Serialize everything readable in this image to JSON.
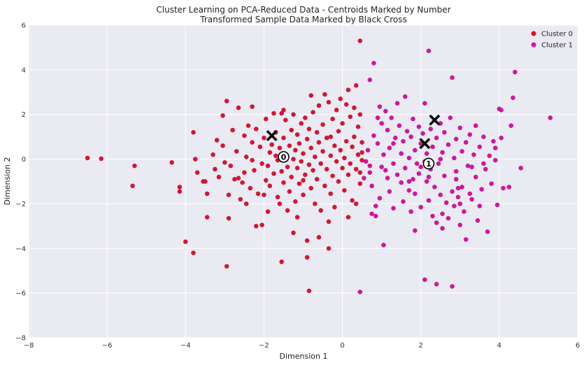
{
  "chart_data": {
    "type": "scatter",
    "title_line1": "Cluster Learning on PCA-Reduced Data - Centroids Marked by Number",
    "title_line2": "Transformed Sample Data Marked by Black Cross",
    "xlabel": "Dimension 1",
    "ylabel": "Dimension 2",
    "xlim": [
      -8,
      6
    ],
    "ylim": [
      -8,
      6
    ],
    "x_ticks": [
      -8,
      -6,
      -4,
      -2,
      0,
      2,
      4,
      6
    ],
    "y_ticks": [
      -8,
      -6,
      -4,
      -2,
      0,
      2,
      4,
      6
    ],
    "grid": true,
    "legend_position": "top-right",
    "series": [
      {
        "name": "Cluster 0",
        "color": "#dc1230",
        "points": [
          [
            -6.5,
            0.05
          ],
          [
            -6.15,
            0.02
          ],
          [
            -5.3,
            -0.3
          ],
          [
            -5.35,
            -1.2
          ],
          [
            -4.35,
            -0.15
          ],
          [
            -4.15,
            -1.25
          ],
          [
            -4.15,
            -1.45
          ],
          [
            -4.0,
            -3.7
          ],
          [
            -3.8,
            -4.2
          ],
          [
            -3.8,
            1.2
          ],
          [
            -3.75,
            0.0
          ],
          [
            -3.7,
            -0.6
          ],
          [
            -3.55,
            -1.0
          ],
          [
            -3.45,
            -1.55
          ],
          [
            -3.45,
            -2.6
          ],
          [
            -3.3,
            0.2
          ],
          [
            -3.25,
            -0.45
          ],
          [
            -3.2,
            0.85
          ],
          [
            -3.15,
            -0.8
          ],
          [
            -3.05,
            1.95
          ],
          [
            -3.05,
            0.6
          ],
          [
            -3.0,
            -0.15
          ],
          [
            -2.95,
            2.6
          ],
          [
            -2.95,
            -4.8
          ],
          [
            -2.9,
            -1.6
          ],
          [
            -2.9,
            -2.65
          ],
          [
            -2.85,
            -0.3
          ],
          [
            -2.8,
            1.3
          ],
          [
            -2.75,
            -0.9
          ],
          [
            -2.7,
            0.35
          ],
          [
            -2.65,
            2.3
          ],
          [
            -2.6,
            -1.8
          ],
          [
            -2.55,
            -1.05
          ],
          [
            -2.5,
            -0.6
          ],
          [
            -2.5,
            1.05
          ],
          [
            -2.45,
            0.1
          ],
          [
            -2.45,
            -2.0
          ],
          [
            -2.4,
            1.5
          ],
          [
            -2.35,
            -1.3
          ],
          [
            -2.3,
            -0.05
          ],
          [
            -2.3,
            0.75
          ],
          [
            -2.25,
            -0.5
          ],
          [
            -2.2,
            1.35
          ],
          [
            -2.2,
            -3.0
          ],
          [
            -2.15,
            -1.55
          ],
          [
            -2.1,
            0.55
          ],
          [
            -2.05,
            -0.2
          ],
          [
            -2.05,
            -2.95
          ],
          [
            -2.0,
            0.95
          ],
          [
            -1.95,
            -0.95
          ],
          [
            -1.95,
            1.8
          ],
          [
            -1.9,
            -0.3
          ],
          [
            -1.85,
            0.3
          ],
          [
            -1.85,
            -1.2
          ],
          [
            -1.8,
            0.65
          ],
          [
            -1.75,
            2.05
          ],
          [
            -1.75,
            -0.65
          ],
          [
            -1.7,
            0.15
          ],
          [
            -1.7,
            1.2
          ],
          [
            -1.65,
            -1.7
          ],
          [
            -1.65,
            -0.05
          ],
          [
            -1.6,
            0.5
          ],
          [
            -1.6,
            -2.0
          ],
          [
            -1.55,
            2.05
          ],
          [
            -1.55,
            -0.55
          ],
          [
            -1.55,
            -4.6
          ],
          [
            -1.5,
            0.95
          ],
          [
            -1.5,
            -1.05
          ],
          [
            -1.45,
            0.2
          ],
          [
            -1.45,
            1.75
          ],
          [
            -1.4,
            -0.35
          ],
          [
            -1.4,
            -2.3
          ],
          [
            -1.35,
            0.6
          ],
          [
            -1.35,
            -1.45
          ],
          [
            -1.3,
            1.3
          ],
          [
            -1.3,
            -0.8
          ],
          [
            -1.25,
            0.0
          ],
          [
            -1.25,
            2.0
          ],
          [
            -1.2,
            0.4
          ],
          [
            -1.2,
            -1.9
          ],
          [
            -1.15,
            1.1
          ],
          [
            -1.15,
            -0.4
          ],
          [
            -1.1,
            0.7
          ],
          [
            -1.1,
            -1.1
          ],
          [
            -1.05,
            1.6
          ],
          [
            -1.05,
            -0.1
          ],
          [
            -1.0,
            0.25
          ],
          [
            -1.0,
            -1.6
          ],
          [
            -0.95,
            1.85
          ],
          [
            -0.95,
            -0.7
          ],
          [
            -0.9,
            0.9
          ],
          [
            -0.9,
            -3.65
          ],
          [
            -0.85,
            -0.25
          ],
          [
            -0.85,
            1.35
          ],
          [
            -0.8,
            0.5
          ],
          [
            -0.8,
            -1.3
          ],
          [
            -0.75,
            2.1
          ],
          [
            -0.75,
            -0.5
          ],
          [
            -0.7,
            0.1
          ],
          [
            -0.7,
            -2.0
          ],
          [
            -0.65,
            1.2
          ],
          [
            -0.65,
            -0.9
          ],
          [
            -0.6,
            2.4
          ],
          [
            -0.6,
            0.75
          ],
          [
            -0.55,
            -0.2
          ],
          [
            -0.55,
            -2.3
          ],
          [
            -0.5,
            1.55
          ],
          [
            -0.5,
            0.35
          ],
          [
            -0.45,
            -1.2
          ],
          [
            -0.45,
            2.9
          ],
          [
            -0.4,
            -0.45
          ],
          [
            -0.4,
            0.95
          ],
          [
            -0.35,
            2.55
          ],
          [
            -0.35,
            -4.0
          ],
          [
            -0.3,
            0.15
          ],
          [
            -0.3,
            -1.55
          ],
          [
            -0.25,
            1.8
          ],
          [
            -0.25,
            -0.75
          ],
          [
            -0.2,
            0.6
          ],
          [
            -0.2,
            -2.15
          ],
          [
            -0.15,
            2.2
          ],
          [
            -0.15,
            -0.1
          ],
          [
            -0.1,
            1.25
          ],
          [
            -0.1,
            -1.0
          ],
          [
            -0.05,
            0.4
          ],
          [
            -0.05,
            2.7
          ],
          [
            0.0,
            -0.4
          ],
          [
            0.0,
            1.6
          ],
          [
            0.05,
            0.05
          ],
          [
            0.05,
            -1.4
          ],
          [
            0.1,
            2.45
          ],
          [
            0.1,
            0.8
          ],
          [
            0.15,
            -0.7
          ],
          [
            0.15,
            3.1
          ],
          [
            0.2,
            1.9
          ],
          [
            0.2,
            -0.2
          ],
          [
            0.25,
            0.55
          ],
          [
            0.25,
            -1.85
          ],
          [
            0.3,
            2.3
          ],
          [
            0.3,
            1.0
          ],
          [
            0.35,
            -0.45
          ],
          [
            0.35,
            3.3
          ],
          [
            0.4,
            0.2
          ],
          [
            0.4,
            1.45
          ],
          [
            0.45,
            -1.1
          ],
          [
            0.45,
            2.0
          ],
          [
            0.5,
            0.75
          ],
          [
            0.5,
            -0.05
          ],
          [
            0.45,
            5.3
          ],
          [
            -0.35,
            -2.8
          ],
          [
            -1.15,
            -2.6
          ],
          [
            -0.9,
            -4.4
          ],
          [
            -0.85,
            -5.9
          ],
          [
            -1.5,
            2.2
          ],
          [
            -2.0,
            -1.6
          ],
          [
            -3.5,
            -1.0
          ],
          [
            -2.65,
            -0.85
          ],
          [
            -1.9,
            -2.35
          ],
          [
            -0.6,
            -3.5
          ],
          [
            0.15,
            -2.6
          ],
          [
            -0.8,
            2.85
          ],
          [
            -0.3,
            1.0
          ],
          [
            -1.0,
            -0.95
          ],
          [
            0.35,
            -2.0
          ],
          [
            0.5,
            0.3
          ],
          [
            0.45,
            -0.6
          ],
          [
            -1.25,
            -3.3
          ],
          [
            -2.3,
            2.35
          ]
        ]
      },
      {
        "name": "Cluster 1",
        "color": "#d5139f",
        "points": [
          [
            0.45,
            -5.95
          ],
          [
            0.55,
            -0.85
          ],
          [
            0.6,
            -0.1
          ],
          [
            0.65,
            0.4
          ],
          [
            0.7,
            -0.6
          ],
          [
            0.7,
            3.55
          ],
          [
            0.75,
            -1.2
          ],
          [
            0.8,
            4.3
          ],
          [
            0.8,
            1.05
          ],
          [
            0.85,
            -2.1
          ],
          [
            0.85,
            -2.55
          ],
          [
            0.9,
            0.7
          ],
          [
            0.95,
            2.35
          ],
          [
            0.95,
            -1.75
          ],
          [
            1.0,
            -0.35
          ],
          [
            1.0,
            1.6
          ],
          [
            1.05,
            -3.85
          ],
          [
            1.05,
            0.2
          ],
          [
            1.1,
            2.15
          ],
          [
            1.15,
            -0.85
          ],
          [
            1.15,
            1.3
          ],
          [
            1.2,
            -1.45
          ],
          [
            1.2,
            0.5
          ],
          [
            1.25,
            1.85
          ],
          [
            1.3,
            -0.2
          ],
          [
            1.3,
            -2.2
          ],
          [
            1.35,
            0.95
          ],
          [
            1.4,
            2.5
          ],
          [
            1.4,
            -0.7
          ],
          [
            1.45,
            1.5
          ],
          [
            1.5,
            -1.05
          ],
          [
            1.5,
            0.25
          ],
          [
            1.55,
            -1.9
          ],
          [
            1.55,
            0.8
          ],
          [
            1.6,
            -0.4
          ],
          [
            1.6,
            2.8
          ],
          [
            1.65,
            1.25
          ],
          [
            1.7,
            -1.4
          ],
          [
            1.7,
            0.05
          ],
          [
            1.75,
            -2.35
          ],
          [
            1.75,
            1.0
          ],
          [
            1.8,
            -0.9
          ],
          [
            1.8,
            1.8
          ],
          [
            1.85,
            0.4
          ],
          [
            1.85,
            -1.55
          ],
          [
            1.9,
            -0.2
          ],
          [
            1.95,
            1.45
          ],
          [
            1.95,
            -0.65
          ],
          [
            2.0,
            0.7
          ],
          [
            2.0,
            -2.15
          ],
          [
            2.05,
            1.15
          ],
          [
            2.1,
            -0.1
          ],
          [
            2.1,
            2.5
          ],
          [
            2.15,
            -1.0
          ],
          [
            2.15,
            0.25
          ],
          [
            2.2,
            -1.85
          ],
          [
            2.2,
            4.85
          ],
          [
            2.25,
            1.35
          ],
          [
            2.25,
            -0.45
          ],
          [
            2.3,
            0.55
          ],
          [
            2.3,
            -2.55
          ],
          [
            2.35,
            -1.25
          ],
          [
            2.4,
            0.95
          ],
          [
            2.4,
            -2.85
          ],
          [
            2.45,
            -0.2
          ],
          [
            2.5,
            1.6
          ],
          [
            2.5,
            -1.6
          ],
          [
            2.55,
            0.3
          ],
          [
            2.55,
            -2.45
          ],
          [
            2.6,
            1.2
          ],
          [
            2.6,
            -0.75
          ],
          [
            2.65,
            -1.95
          ],
          [
            2.7,
            0.65
          ],
          [
            2.7,
            -2.65
          ],
          [
            2.75,
            1.85
          ],
          [
            2.8,
            -1.45
          ],
          [
            2.8,
            3.65
          ],
          [
            2.85,
            0.05
          ],
          [
            2.85,
            -2.1
          ],
          [
            2.9,
            0.9
          ],
          [
            2.9,
            -0.55
          ],
          [
            2.95,
            -1.7
          ],
          [
            3.0,
            1.4
          ],
          [
            3.0,
            -2.95
          ],
          [
            3.05,
            0.35
          ],
          [
            3.05,
            -1.25
          ],
          [
            3.1,
            -2.35
          ],
          [
            3.15,
            0.75
          ],
          [
            3.15,
            -3.6
          ],
          [
            3.2,
            -0.3
          ],
          [
            3.25,
            1.1
          ],
          [
            3.3,
            -1.8
          ],
          [
            3.35,
            0.2
          ],
          [
            3.4,
            -0.8
          ],
          [
            3.4,
            1.5
          ],
          [
            3.45,
            -2.75
          ],
          [
            3.5,
            0.55
          ],
          [
            3.55,
            -1.35
          ],
          [
            3.6,
            1.0
          ],
          [
            3.65,
            -0.45
          ],
          [
            3.7,
            -3.25
          ],
          [
            3.75,
            0.15
          ],
          [
            3.8,
            -1.1
          ],
          [
            3.85,
            0.8
          ],
          [
            3.9,
            -0.05
          ],
          [
            3.95,
            -2.05
          ],
          [
            4.0,
            2.25
          ],
          [
            4.05,
            0.95
          ],
          [
            4.05,
            2.2
          ],
          [
            4.1,
            -1.3
          ],
          [
            4.3,
            1.5
          ],
          [
            4.35,
            2.75
          ],
          [
            4.4,
            3.9
          ],
          [
            4.55,
            -0.4
          ],
          [
            5.3,
            1.85
          ],
          [
            2.1,
            -5.4
          ],
          [
            2.4,
            -5.6
          ],
          [
            2.8,
            -5.7
          ],
          [
            0.7,
            -0.3
          ],
          [
            1.1,
            -0.5
          ],
          [
            2.9,
            -0.9
          ],
          [
            3.3,
            -0.35
          ],
          [
            1.7,
            -1.0
          ],
          [
            2.0,
            -0.35
          ],
          [
            3.6,
            -0.2
          ],
          [
            2.5,
            0.0
          ],
          [
            1.3,
            0.7
          ],
          [
            3.9,
            0.5
          ],
          [
            0.75,
            -2.45
          ],
          [
            0.9,
            1.85
          ],
          [
            2.95,
            -1.3
          ],
          [
            3.5,
            -2.1
          ],
          [
            2.2,
            -0.8
          ],
          [
            1.85,
            -3.2
          ],
          [
            3.0,
            -2.0
          ],
          [
            2.55,
            -3.1
          ],
          [
            3.25,
            -1.55
          ],
          [
            4.25,
            -1.25
          ]
        ]
      }
    ],
    "centroids": [
      {
        "label": "0",
        "x": -1.5,
        "y": 0.1
      },
      {
        "label": "1",
        "x": 2.2,
        "y": -0.2
      }
    ],
    "samples": [
      {
        "x": -1.8,
        "y": 1.05
      },
      {
        "x": 2.35,
        "y": 1.75
      },
      {
        "x": 2.1,
        "y": 0.7
      }
    ]
  }
}
